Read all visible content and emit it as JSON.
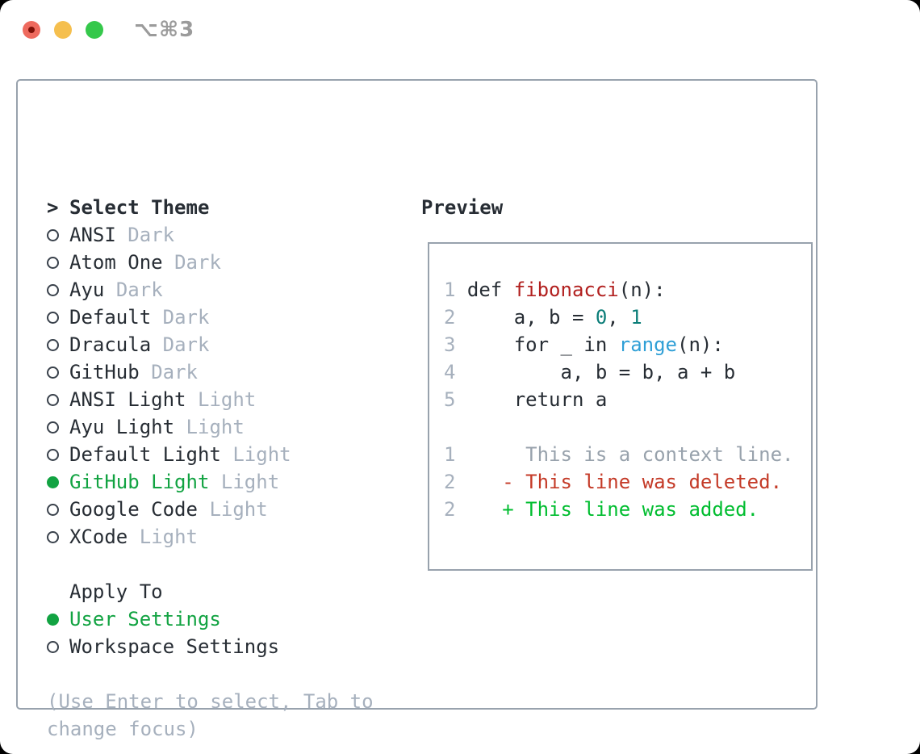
{
  "window": {
    "shortcut": "⌥⌘3"
  },
  "theme_picker": {
    "title": "Select Theme",
    "title_prefix": ">",
    "themes": [
      {
        "name": "ANSI",
        "tag": "Dark",
        "selected": false
      },
      {
        "name": "Atom One",
        "tag": "Dark",
        "selected": false
      },
      {
        "name": "Ayu",
        "tag": "Dark",
        "selected": false
      },
      {
        "name": "Default",
        "tag": "Dark",
        "selected": false
      },
      {
        "name": "Dracula",
        "tag": "Dark",
        "selected": false
      },
      {
        "name": "GitHub",
        "tag": "Dark",
        "selected": false
      },
      {
        "name": "ANSI Light",
        "tag": "Light",
        "selected": false
      },
      {
        "name": "Ayu Light",
        "tag": "Light",
        "selected": false
      },
      {
        "name": "Default Light",
        "tag": "Light",
        "selected": false
      },
      {
        "name": "GitHub Light",
        "tag": "Light",
        "selected": true
      },
      {
        "name": "Google Code",
        "tag": "Light",
        "selected": false
      },
      {
        "name": "XCode",
        "tag": "Light",
        "selected": false
      }
    ],
    "apply_to": {
      "title": "Apply To",
      "options": [
        {
          "name": "User Settings",
          "selected": true
        },
        {
          "name": "Workspace Settings",
          "selected": false
        }
      ]
    },
    "hint_lines": [
      "(Use Enter to select, Tab to",
      "change focus)"
    ]
  },
  "preview": {
    "title": "Preview",
    "code_lines": [
      [
        [
          "1",
          "num"
        ],
        [
          " def ",
          "plain"
        ],
        [
          "fibonacci",
          "red"
        ],
        [
          "(n):",
          "plain"
        ]
      ],
      [
        [
          "2",
          "num"
        ],
        [
          "     a, b = ",
          "plain"
        ],
        [
          "0",
          "teal"
        ],
        [
          ", ",
          "plain"
        ],
        [
          "1",
          "teal"
        ]
      ],
      [
        [
          "3",
          "num"
        ],
        [
          "     for _ in ",
          "plain"
        ],
        [
          "range",
          "blue"
        ],
        [
          "(n):",
          "plain"
        ]
      ],
      [
        [
          "4",
          "num"
        ],
        [
          "         a, b = b, a + b",
          "plain"
        ]
      ],
      [
        [
          "5",
          "num"
        ],
        [
          "     return a",
          "plain"
        ]
      ],
      [],
      [
        [
          "1",
          "num"
        ],
        [
          "      This is a context line.",
          "gray"
        ]
      ],
      [
        [
          "2",
          "num"
        ],
        [
          "    - This line was deleted.",
          "del"
        ]
      ],
      [
        [
          "2",
          "num"
        ],
        [
          "    + This line was added.",
          "add"
        ]
      ]
    ]
  },
  "colors": {
    "window-bg": "#ffffff",
    "text-dark": "#272d34",
    "text-gray": "#a6b0bd",
    "context-gray": "#98a2ac",
    "radio-ring": "#39414b",
    "accent-green": "#12a342",
    "added-green": "#00bd2f",
    "func-red": "#b2201f",
    "deleted-red": "#c43a27",
    "number-teal": "#0b7d78",
    "builtin-blue": "#2f9fd6",
    "border-gray": "#98a2ad",
    "traffic-red": "#ee6a5e",
    "traffic-red-dot": "#7e1007",
    "traffic-yellow": "#f5bf4e",
    "traffic-green": "#35c84b",
    "shortcut-gray": "#9b9b9b"
  }
}
